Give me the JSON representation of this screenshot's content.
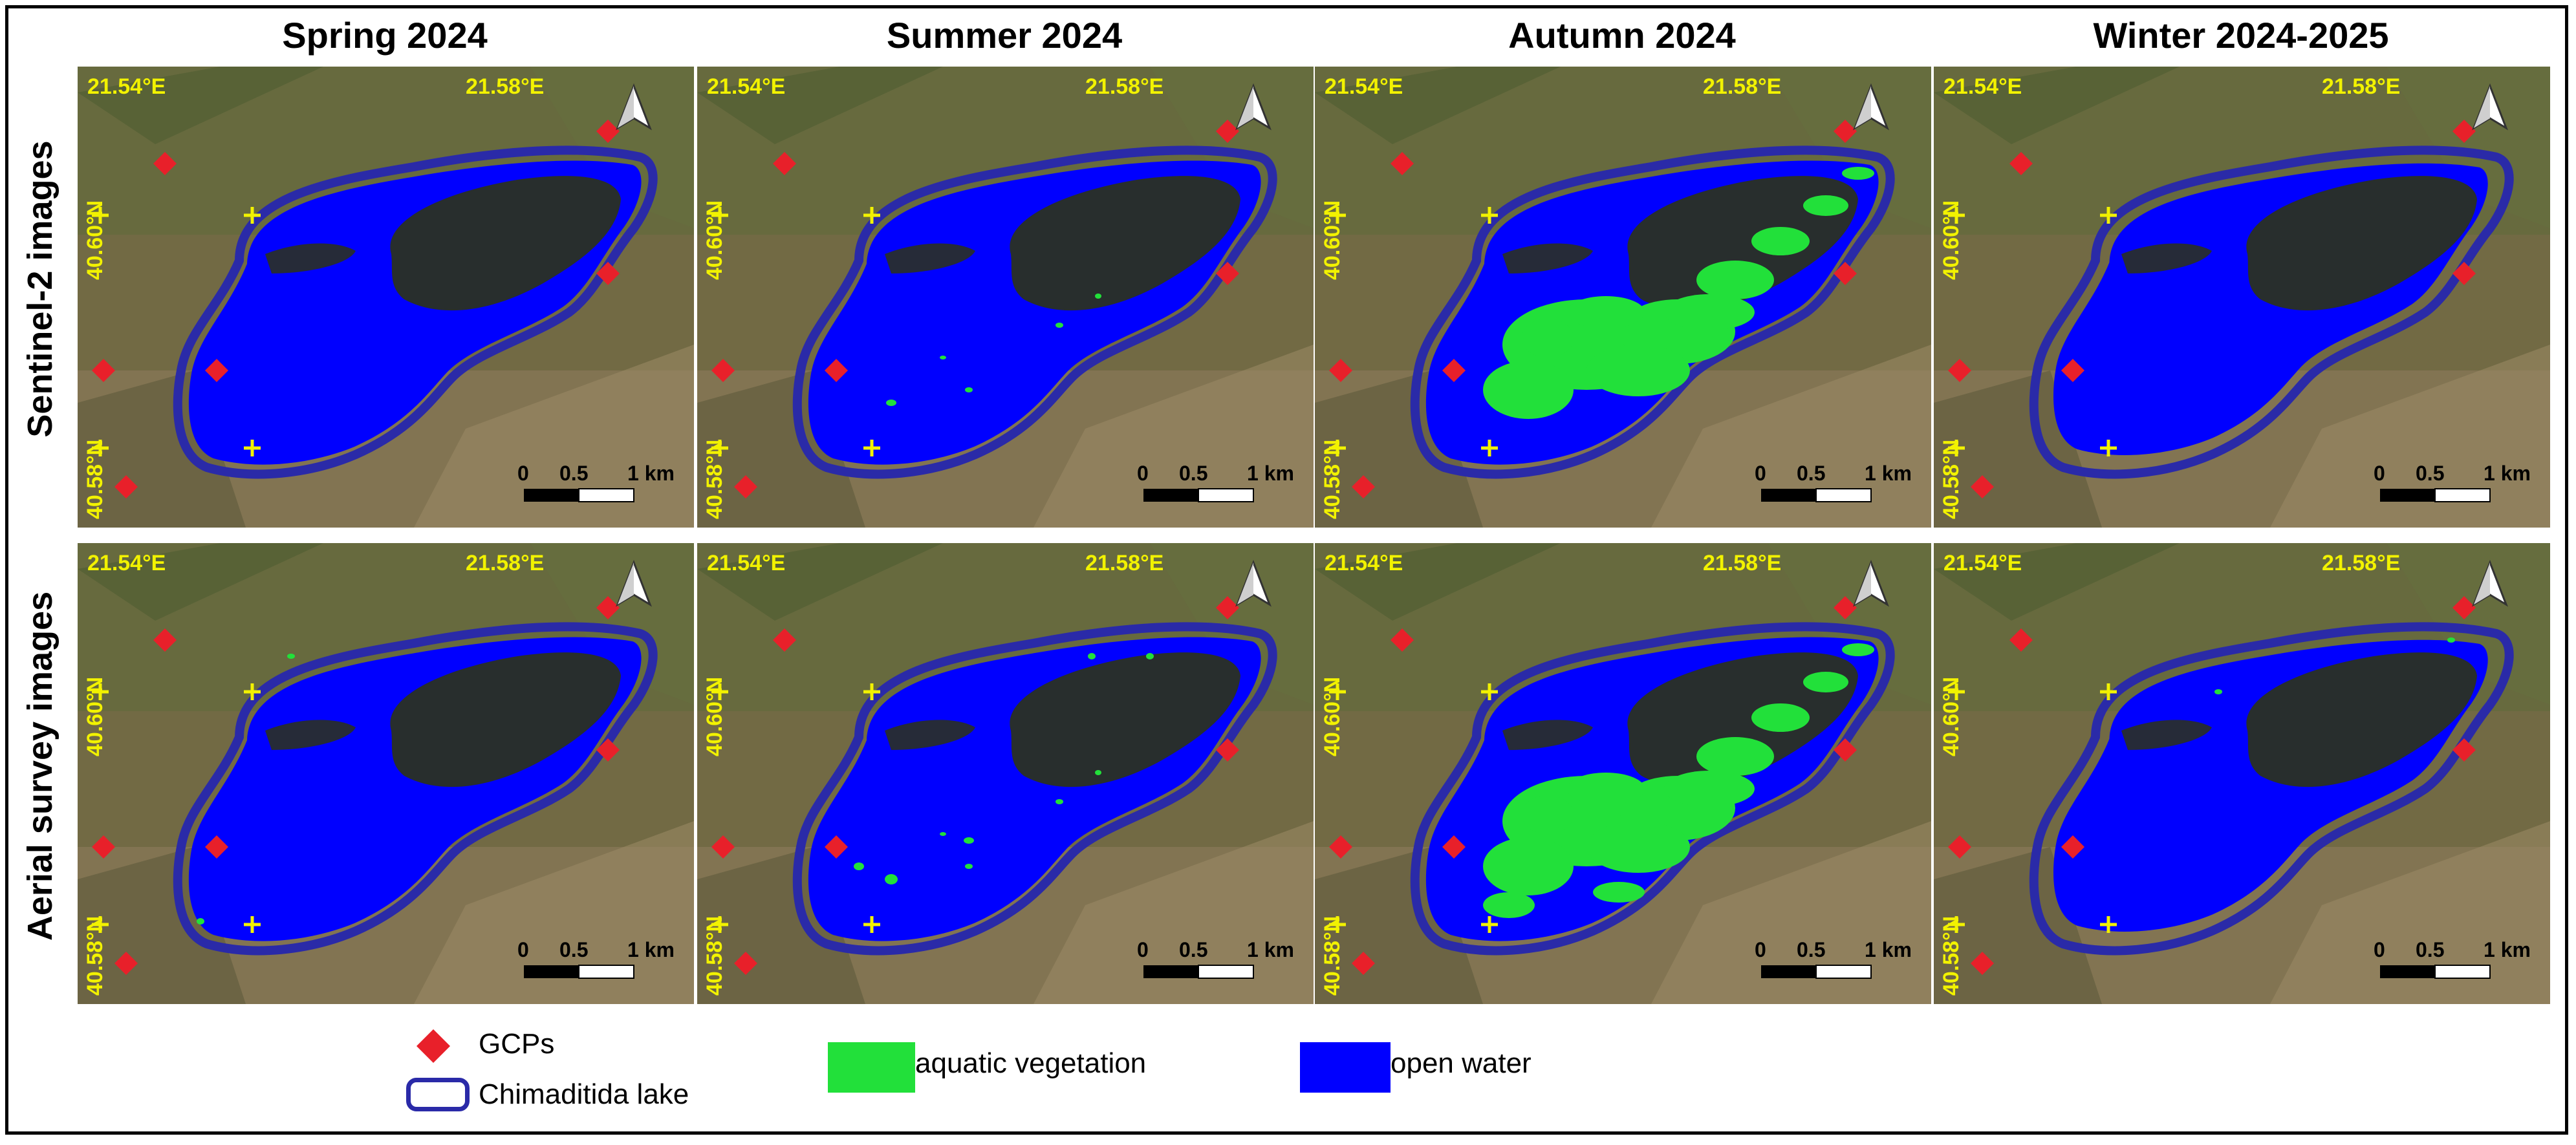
{
  "columns": [
    "Spring 2024",
    "Summer 2024",
    "Autumn 2024",
    "Winter 2024-2025"
  ],
  "rows": [
    "Sentinel-2 images",
    "Aerial survey images"
  ],
  "coordinates": {
    "lon_left": "21.54°E",
    "lon_right": "21.58°E",
    "lat_top": "40.60°N",
    "lat_bottom": "40.58°N"
  },
  "scale_bar": {
    "tick_0": "0",
    "tick_mid": "0.5",
    "tick_end": "1 km"
  },
  "legend": {
    "gcps": "GCPs",
    "lake": "Chimaditida lake",
    "vegetation": "aquatic vegetation",
    "water": "open water"
  },
  "colors": {
    "open_water": "#0000ff",
    "aquatic_vegetation": "#22e03a",
    "lake_outline": "#2a2aa8",
    "gcp": "#e8202a",
    "label": "#f2f200"
  },
  "icons": {
    "north_arrow": "north-arrow-icon",
    "gcp": "diamond-icon",
    "cross": "plus-marker-icon"
  }
}
